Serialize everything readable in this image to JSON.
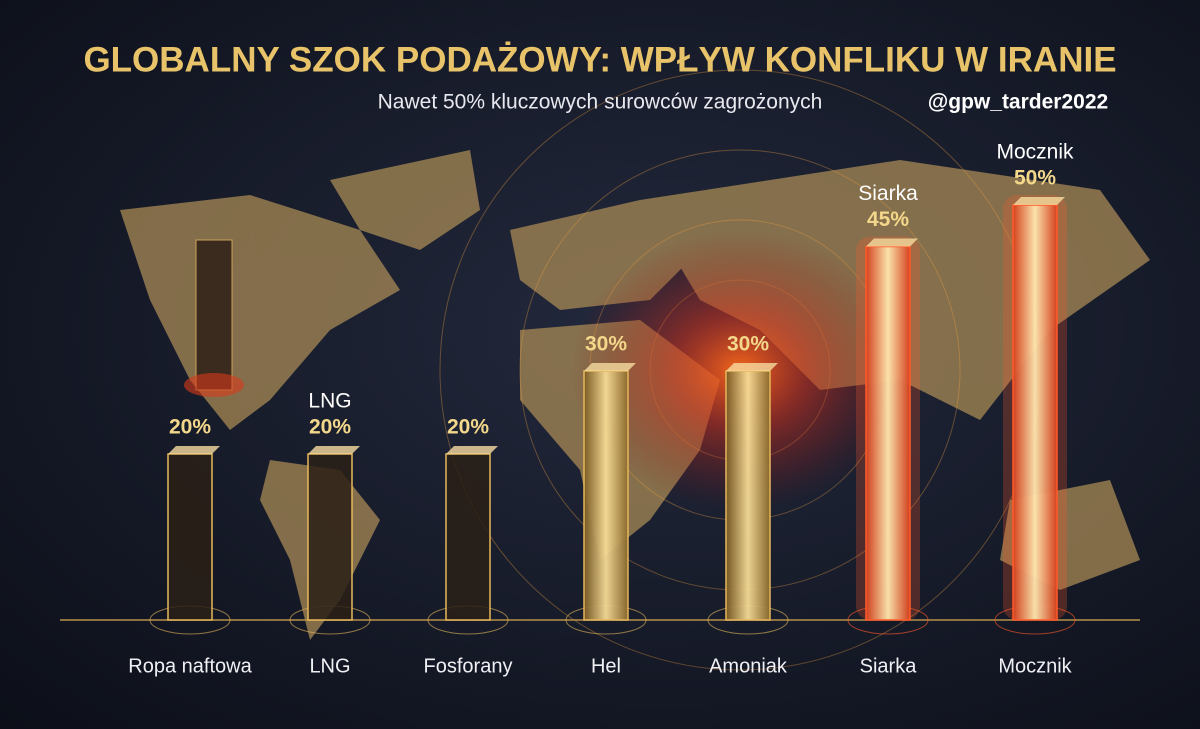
{
  "chart_data": {
    "type": "bar",
    "title": "GLOBALNY SZOK PODAŻOWY: WPŁYW KONFLIKU W IRANIE",
    "subtitle": "Nawet 50% kluczowych surowców zagrożonych",
    "author": "@gpw_tarder2022",
    "categories": [
      "Ropa naftowa",
      "LNG",
      "Fosforany",
      "Hel",
      "Amoniak",
      "Siarka",
      "Mocznik"
    ],
    "values": [
      20,
      20,
      20,
      30,
      30,
      45,
      50
    ],
    "value_labels": [
      "20%",
      "20%",
      "20%",
      "30%",
      "30%",
      "45%",
      "50%"
    ],
    "top_labels": [
      null,
      "LNG",
      null,
      null,
      null,
      "Siarka",
      "Mocznik"
    ],
    "colors": [
      "#e6b85c",
      "#e6b85c",
      "#e6b85c",
      "#e6b85c",
      "#e6b85c",
      "#ff5a2a",
      "#ff5a2a"
    ]
  }
}
